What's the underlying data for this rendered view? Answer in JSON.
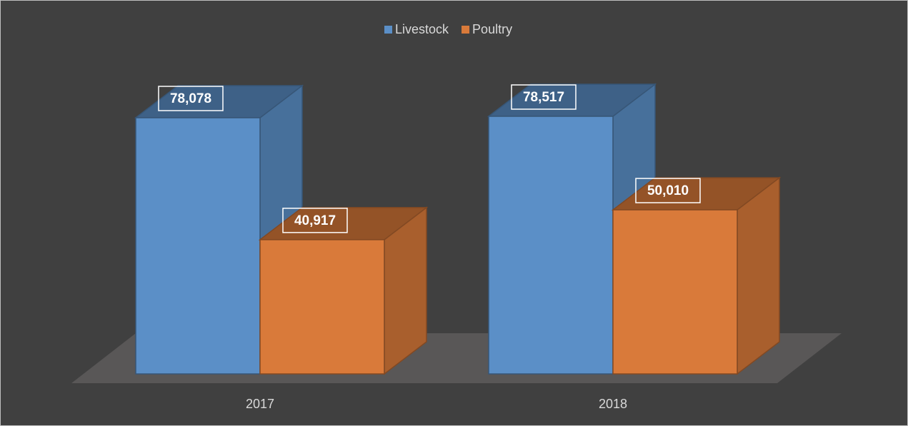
{
  "chart_data": {
    "type": "bar3d",
    "categories": [
      "2017",
      "2018"
    ],
    "series": [
      {
        "name": "Livestock",
        "color": "#5b8fc7",
        "values": [
          78078,
          78517
        ],
        "value_labels": [
          "78,078",
          "78,517"
        ]
      },
      {
        "name": "Poultry",
        "color": "#d97a3a",
        "values": [
          40917,
          50010
        ],
        "value_labels": [
          "40,917",
          "50,010"
        ]
      }
    ],
    "legend": "top"
  }
}
